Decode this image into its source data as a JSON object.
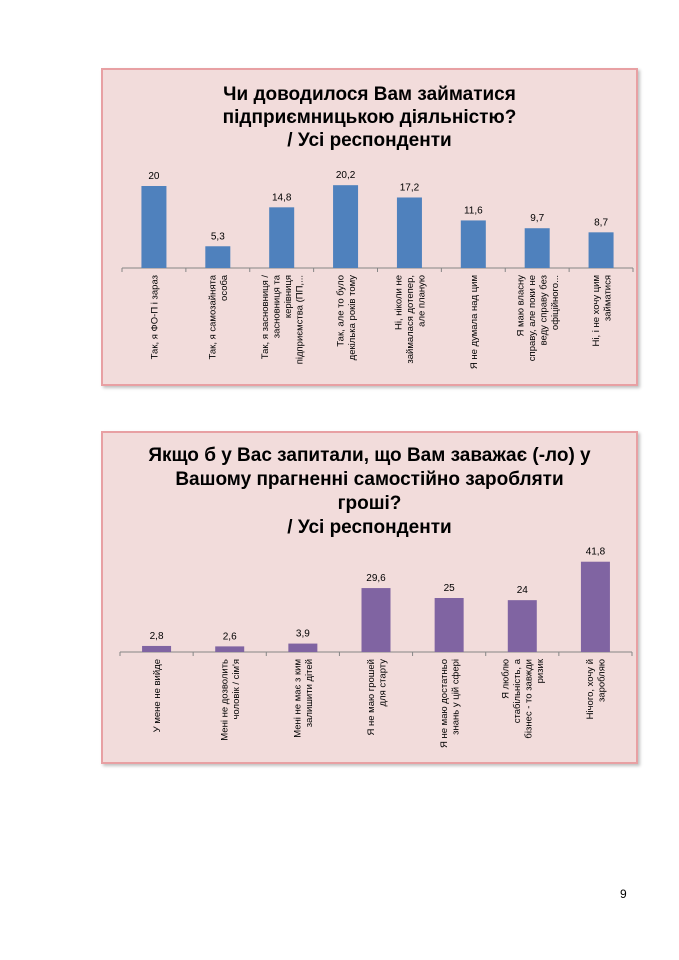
{
  "page": {
    "number": "9"
  },
  "chart_data": [
    {
      "type": "bar",
      "title_lines": [
        "Чи доводилося Вам займатися",
        "підприємницькою діяльністю?",
        "/ Усі респонденти"
      ],
      "categories": [
        [
          "Так, я ФО-П і зараз"
        ],
        [
          "Так, я самозайнята",
          "особа"
        ],
        [
          "Так, я засновниця /",
          "засновниця та",
          "керівниця",
          "підприємства (ПП,..."
        ],
        [
          "Так, але то було",
          "декілька років тому"
        ],
        [
          "Ні, ніколи не",
          "займалася дотепер,",
          "але планую"
        ],
        [
          "Я не думала над цим"
        ],
        [
          "Я маю власну",
          "справу, але поки не",
          "веду справу без",
          "офіційного..."
        ],
        [
          "Ні, і не хочу цим",
          "займатися"
        ]
      ],
      "values": [
        20,
        5.3,
        14.8,
        20.2,
        17.2,
        11.6,
        9.7,
        8.7
      ],
      "value_labels": [
        "20",
        "5,3",
        "14,8",
        "20,2",
        "17,2",
        "11,6",
        "9,7",
        "8,7"
      ],
      "color": "#4f81bd",
      "ylim": [
        0,
        22
      ],
      "grid": false
    },
    {
      "type": "bar",
      "title_lines": [
        "Якщо б у Вас запитали, що Вам заважає (-ло) у",
        "Вашому прагненні самостійно заробляти",
        "гроші?",
        "/ Усі респонденти"
      ],
      "categories": [
        [
          "У мене не вийде"
        ],
        [
          "Мені не дозволить",
          "чоловік / сім'я"
        ],
        [
          "Мені не має з ким",
          "залишити дітей"
        ],
        [
          "Я не маю грошей",
          "для старту"
        ],
        [
          "Я не маю достатньо",
          "знань у цій сфері"
        ],
        [
          "Я люблю",
          "стабільність, а",
          "бізнес - то завжди",
          "ризик"
        ],
        [
          "Нічого, хочу й",
          "заробляю"
        ]
      ],
      "values": [
        2.8,
        2.6,
        3.9,
        29.6,
        25,
        24,
        41.8
      ],
      "value_labels": [
        "2,8",
        "2,6",
        "3,9",
        "29,6",
        "25",
        "24",
        "41,8"
      ],
      "color": "#8064a2",
      "ylim": [
        0,
        45
      ],
      "grid": false
    }
  ]
}
